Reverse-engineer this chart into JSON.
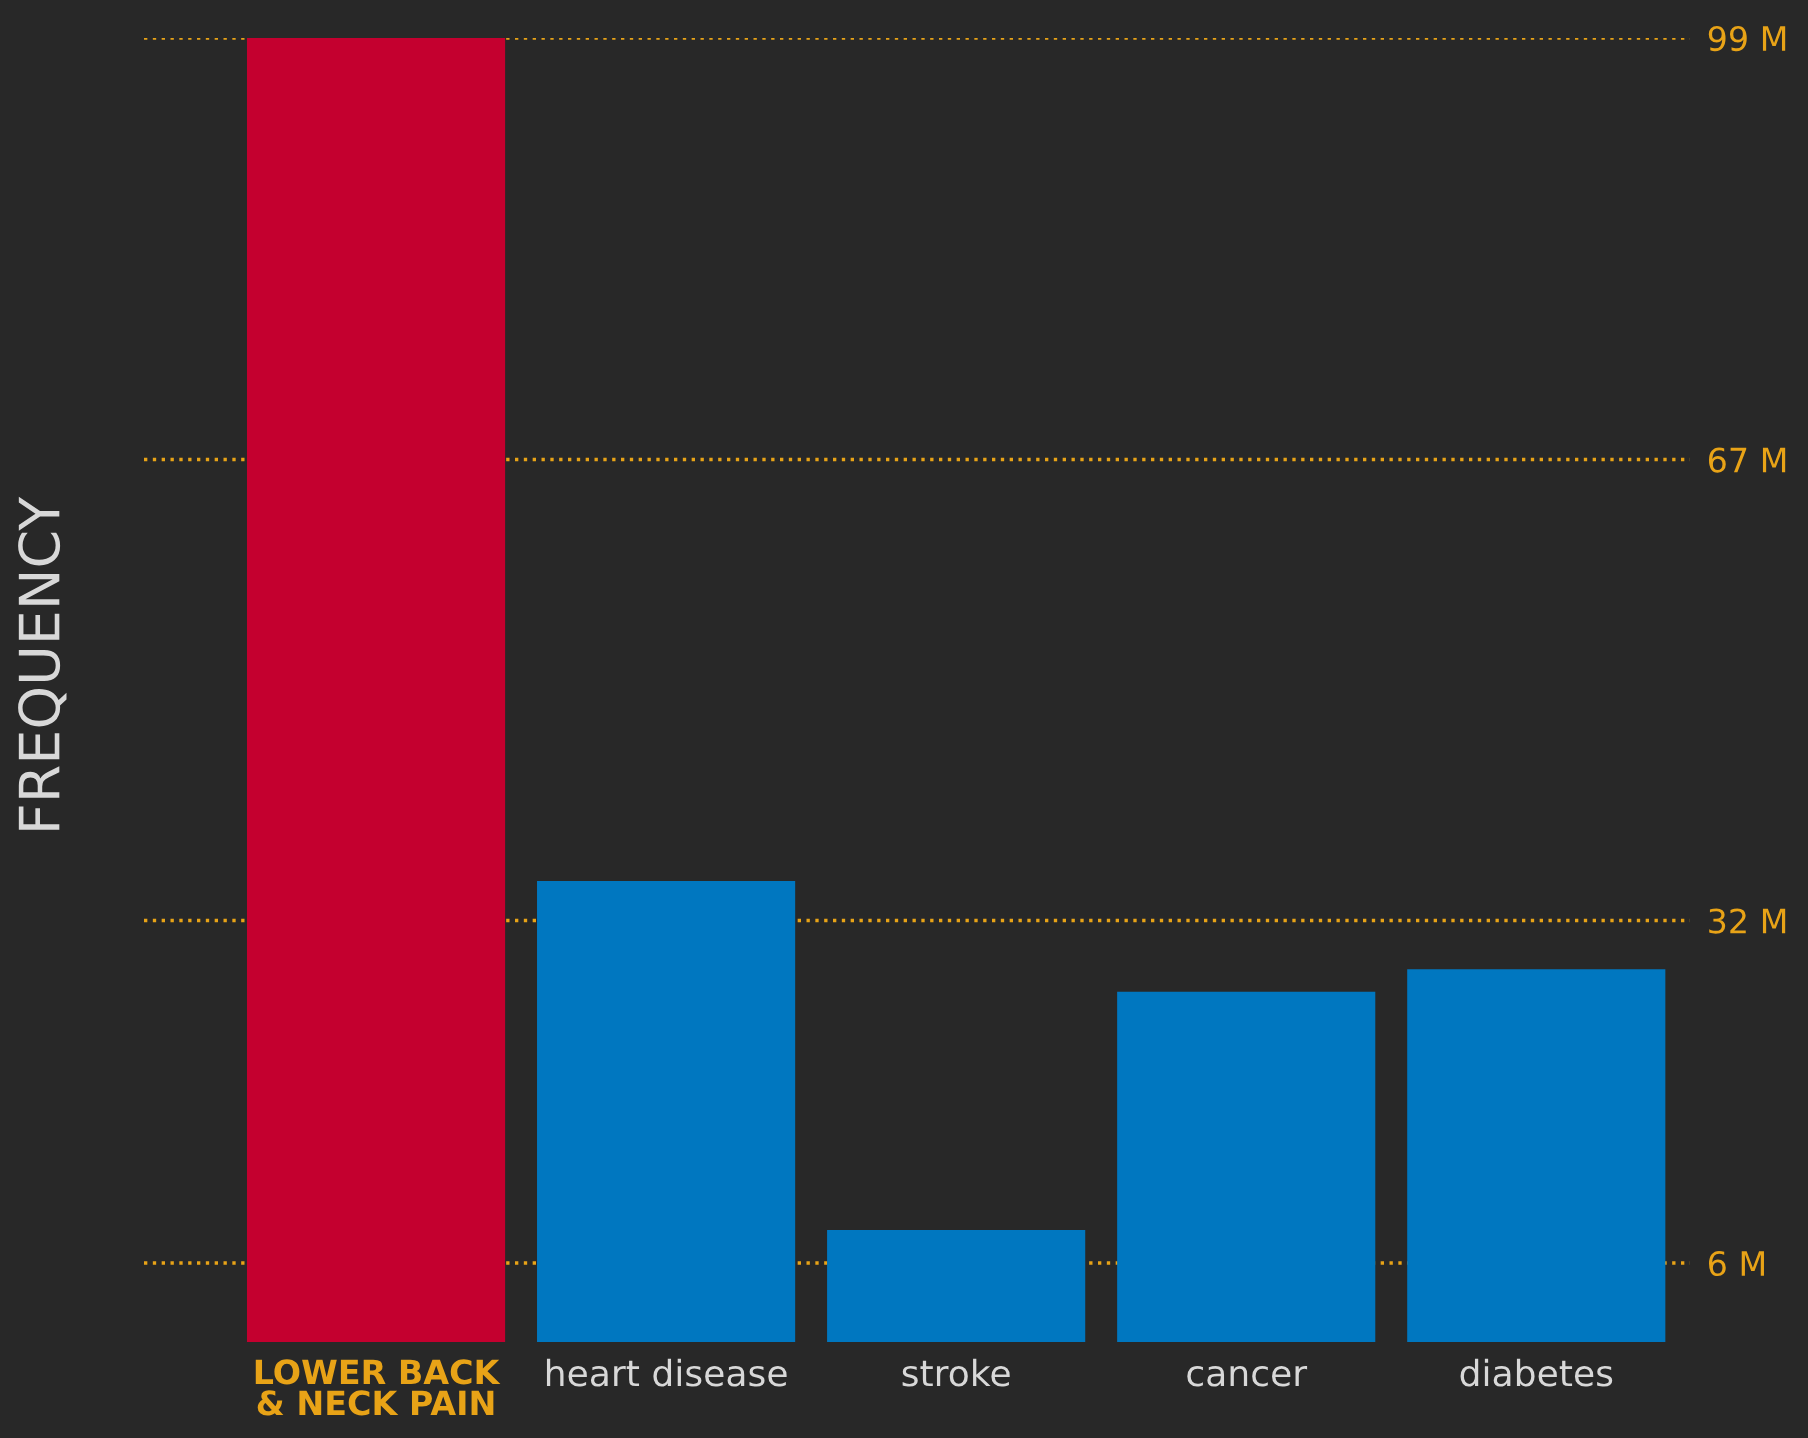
{
  "chart_data": {
    "type": "bar",
    "ylabel": "FREQUENCY",
    "categories": [
      "LOWER BACK\n& NECK PAIN",
      "heart disease",
      "stroke",
      "cancer",
      "diabetes"
    ],
    "values": [
      99,
      35,
      8.5,
      26.6,
      28.3
    ],
    "colors": [
      "#c4002f",
      "#0077c0",
      "#0077c0",
      "#0077c0",
      "#0077c0"
    ],
    "ylim": [
      0,
      99
    ],
    "yticks": [
      {
        "value": 6,
        "label": "6 M"
      },
      {
        "value": 32,
        "label": "32 M"
      },
      {
        "value": 67,
        "label": "67 M"
      },
      {
        "value": 99,
        "label": "99 M"
      }
    ],
    "grid": "y",
    "line_style": "dotted"
  }
}
